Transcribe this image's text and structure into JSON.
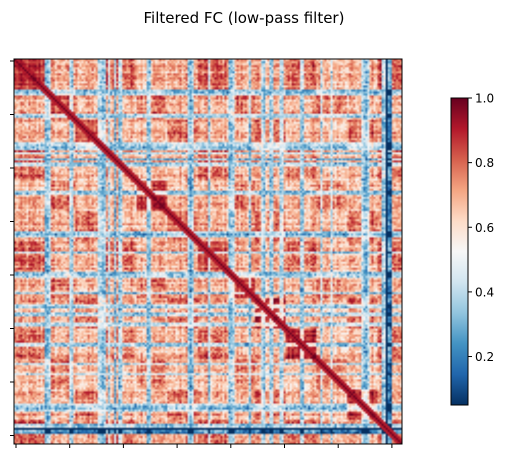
{
  "chart_data": {
    "type": "heatmap",
    "title": "Filtered FC (low-pass filter)",
    "xlabel": "",
    "ylabel": "",
    "matrix_size": 190,
    "value_range": [
      0.05,
      1.0
    ],
    "diagonal_value": 1.0,
    "colormap": "RdBu_r",
    "colormap_stops": [
      "#053061",
      "#2166ac",
      "#4393c3",
      "#92c5de",
      "#d1e5f0",
      "#f7f7f7",
      "#fddbc7",
      "#f4a582",
      "#d6604d",
      "#b2182b",
      "#67001f"
    ],
    "block_boundaries": [
      0,
      15,
      30,
      45,
      60,
      75,
      90,
      105,
      118,
      133,
      148,
      163,
      178,
      190
    ],
    "block_means": [
      0.85,
      0.8,
      0.82,
      0.72,
      0.88,
      0.78,
      0.8,
      0.84,
      0.86,
      0.9,
      0.8,
      0.88,
      0.75
    ],
    "low_rows": [
      15,
      16,
      17,
      27,
      28,
      41,
      42,
      43,
      44,
      46,
      49,
      51,
      52,
      65,
      66,
      85,
      86,
      87,
      95,
      105,
      106,
      107,
      115,
      121,
      122,
      125,
      126,
      130,
      131,
      140,
      141,
      150,
      155,
      170,
      171,
      172,
      173,
      180,
      181,
      182
    ],
    "dark_rows": [
      182,
      183,
      184
    ],
    "background_mean": 0.68,
    "x_tick_count": 8,
    "y_tick_count": 8,
    "x_tick_labels": [
      "",
      "",
      "",
      "",
      "",
      "",
      "",
      ""
    ],
    "y_tick_labels": [
      "",
      "",
      "",
      "",
      "",
      "",
      "",
      ""
    ],
    "colorbar": {
      "min": 0.05,
      "max": 1.0,
      "ticks": [
        0.2,
        0.4,
        0.6,
        0.8,
        1.0
      ],
      "tick_labels": [
        "0.2",
        "0.4",
        "0.6",
        "0.8",
        "1.0"
      ]
    }
  }
}
